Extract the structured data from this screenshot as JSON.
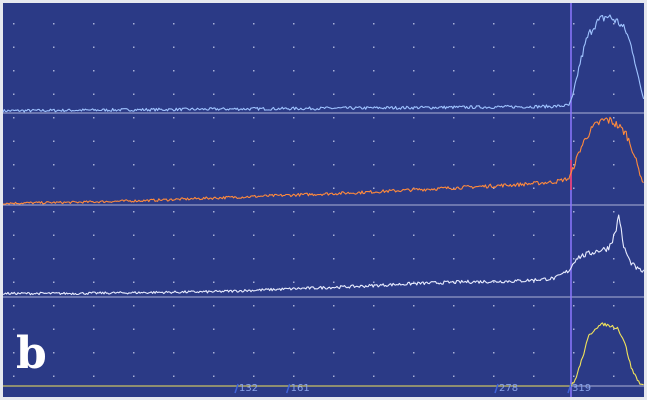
{
  "panel_label": "b",
  "colors": {
    "background": "#2b3a86",
    "border": "#e6e8ee",
    "grid_dot": "#c7cdea",
    "baseline": "#c3c9e6",
    "cursor": "#8d78ff",
    "cursor_tick": "#ff3b6b",
    "trace_blue": "#9fc3ff",
    "trace_orange": "#ff8a3c",
    "trace_white": "#e8ecff",
    "trace_yellow": "#f2e35a",
    "marker_tick": "#3f63d8"
  },
  "chart_data": {
    "type": "line",
    "title": "",
    "xlabel": "",
    "ylabel": "",
    "xlim": [
      0,
      360
    ],
    "grid": true,
    "markers": [
      {
        "x": 132,
        "label": "132"
      },
      {
        "x": 161,
        "label": "161"
      },
      {
        "x": 278,
        "label": "278"
      },
      {
        "x": 319,
        "label": "319"
      }
    ],
    "cursor_x": 319,
    "channels": [
      {
        "id": "blue",
        "color_key": "trace_blue",
        "ylim": [
          0,
          100
        ],
        "points": [
          [
            0,
            2
          ],
          [
            40,
            2.5
          ],
          [
            80,
            3
          ],
          [
            120,
            3.5
          ],
          [
            160,
            4
          ],
          [
            200,
            4.5
          ],
          [
            240,
            5
          ],
          [
            280,
            5.5
          ],
          [
            310,
            6
          ],
          [
            318,
            7
          ],
          [
            320,
            15
          ],
          [
            324,
            45
          ],
          [
            328,
            68
          ],
          [
            332,
            80
          ],
          [
            336,
            85
          ],
          [
            339,
            88
          ],
          [
            342,
            86
          ],
          [
            346,
            82
          ],
          [
            350,
            74
          ],
          [
            354,
            55
          ],
          [
            357,
            30
          ],
          [
            360,
            12
          ]
        ]
      },
      {
        "id": "orange",
        "color_key": "trace_orange",
        "ylim": [
          0,
          100
        ],
        "points": [
          [
            0,
            2
          ],
          [
            40,
            3
          ],
          [
            80,
            5
          ],
          [
            120,
            8
          ],
          [
            160,
            11
          ],
          [
            200,
            14
          ],
          [
            240,
            18
          ],
          [
            270,
            21
          ],
          [
            290,
            23
          ],
          [
            310,
            26
          ],
          [
            318,
            30
          ],
          [
            320,
            40
          ],
          [
            324,
            62
          ],
          [
            328,
            78
          ],
          [
            332,
            88
          ],
          [
            336,
            94
          ],
          [
            339,
            96
          ],
          [
            342,
            94
          ],
          [
            346,
            88
          ],
          [
            350,
            80
          ],
          [
            354,
            60
          ],
          [
            357,
            40
          ],
          [
            360,
            22
          ]
        ]
      },
      {
        "id": "white",
        "color_key": "trace_white",
        "ylim": [
          0,
          100
        ],
        "points": [
          [
            0,
            4
          ],
          [
            40,
            4
          ],
          [
            80,
            5
          ],
          [
            120,
            6
          ],
          [
            160,
            9
          ],
          [
            200,
            12
          ],
          [
            230,
            15
          ],
          [
            260,
            17
          ],
          [
            290,
            18
          ],
          [
            310,
            21
          ],
          [
            318,
            30
          ],
          [
            322,
            44
          ],
          [
            328,
            48
          ],
          [
            334,
            52
          ],
          [
            340,
            55
          ],
          [
            344,
            72
          ],
          [
            346,
            95
          ],
          [
            348,
            60
          ],
          [
            352,
            40
          ],
          [
            356,
            32
          ],
          [
            360,
            28
          ]
        ]
      },
      {
        "id": "yellow",
        "color_key": "trace_yellow",
        "ylim": [
          0,
          100
        ],
        "points": [
          [
            0,
            0
          ],
          [
            319,
            0
          ],
          [
            321,
            5
          ],
          [
            325,
            30
          ],
          [
            329,
            58
          ],
          [
            333,
            68
          ],
          [
            337,
            72
          ],
          [
            341,
            70
          ],
          [
            345,
            68
          ],
          [
            349,
            52
          ],
          [
            353,
            20
          ],
          [
            357,
            5
          ],
          [
            360,
            0
          ]
        ]
      }
    ]
  }
}
